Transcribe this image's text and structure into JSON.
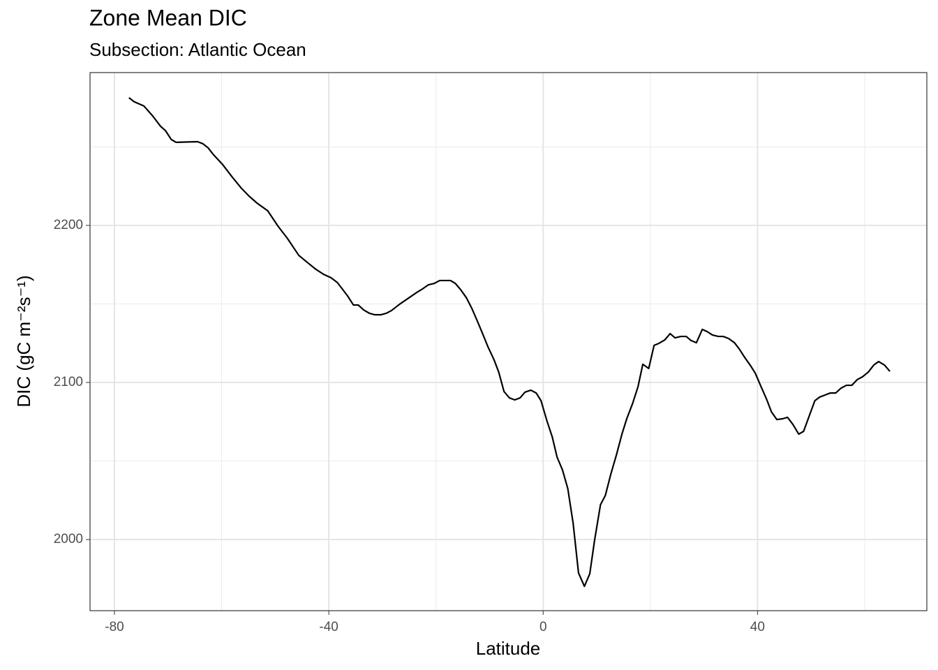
{
  "chart_data": {
    "type": "line",
    "title": "Zone Mean DIC",
    "subtitle": "Subsection: Atlantic Ocean",
    "x_label": "Latitude",
    "y_label": "DIC (gC m⁻²s⁻¹)",
    "xlim": [
      -84.56,
      71.6
    ],
    "ylim": [
      1954.7,
      2297.3
    ],
    "xticks": [
      -80,
      -40,
      0,
      40
    ],
    "yticks": [
      2000,
      2100,
      2200
    ],
    "minor_xticks": [
      -60,
      -20,
      20,
      60
    ],
    "minor_yticks": [
      2050,
      2150,
      2250
    ],
    "grid": true,
    "series": [
      {
        "color": "#000000",
        "x": [
          -77.3,
          -76.3,
          -74.5,
          -72.9,
          -71.4,
          -70.5,
          -69.4,
          -68.5,
          -64.5,
          -63.5,
          -62.5,
          -61.5,
          -59.9,
          -58.1,
          -56.4,
          -54.9,
          -53.4,
          -51.4,
          -49.5,
          -47.7,
          -45.6,
          -44,
          -42.4,
          -41,
          -39.6,
          -38.4,
          -37.5,
          -36.5,
          -35.4,
          -34.5,
          -33.5,
          -32.4,
          -31.4,
          -30.3,
          -29.3,
          -28.3,
          -26.8,
          -25.3,
          -23.6,
          -22.5,
          -21.4,
          -20.3,
          -19.3,
          -17.3,
          -16.4,
          -15.4,
          -14.3,
          -13.3,
          -12.4,
          -11.3,
          -10.3,
          -9.2,
          -8.3,
          -7.3,
          -6.3,
          -5.3,
          -4.3,
          -3.4,
          -2.3,
          -1.3,
          -0.4,
          0.7,
          1.7,
          2.6,
          3.6,
          4.6,
          5.6,
          6.6,
          7.7,
          8.7,
          9.6,
          10.7,
          11.6,
          12.6,
          13.7,
          14.7,
          15.6,
          16.7,
          17.7,
          18.6,
          19.7,
          20.7,
          21.6,
          22.7,
          23.7,
          24.6,
          25.7,
          26.7,
          27.6,
          28.6,
          29.7,
          30.6,
          31.6,
          32.7,
          33.6,
          34.6,
          35.7,
          36.6,
          37.6,
          38.7,
          39.6,
          40.6,
          41.7,
          42.6,
          43.6,
          44.7,
          45.6,
          46.6,
          47.7,
          48.6,
          49.6,
          50.7,
          51.6,
          52.6,
          53.6,
          54.6,
          55.6,
          56.6,
          57.6,
          58.6,
          59.6,
          60.7,
          61.7,
          62.6,
          63.7,
          64.7
        ],
        "values": [
          2281.3,
          2278.7,
          2276,
          2269.8,
          2263.1,
          2260.4,
          2254.7,
          2252.9,
          2253.3,
          2252,
          2249.3,
          2244.9,
          2239.1,
          2231.1,
          2224,
          2218.7,
          2214.2,
          2209.3,
          2199.6,
          2191.6,
          2180.9,
          2176.4,
          2172,
          2168.9,
          2166.7,
          2163.6,
          2159.6,
          2155.1,
          2149.3,
          2149.3,
          2146.2,
          2144,
          2143.1,
          2143.1,
          2144,
          2145.8,
          2149.8,
          2153.3,
          2157.3,
          2159.6,
          2162.2,
          2163.1,
          2164.9,
          2164.9,
          2163.1,
          2159.1,
          2153.8,
          2147.1,
          2140,
          2131.1,
          2122.7,
          2114.7,
          2106.7,
          2094.2,
          2090.2,
          2088.9,
          2090.2,
          2093.8,
          2095.1,
          2093.3,
          2088.4,
          2075.6,
          2065.3,
          2052.4,
          2044.4,
          2032.4,
          2010.2,
          1978.7,
          1970.2,
          1978.2,
          1999.6,
          2022.2,
          2028,
          2041.3,
          2054.2,
          2067.1,
          2076.9,
          2086.7,
          2097.3,
          2111.6,
          2108.9,
          2123.6,
          2124.9,
          2127.1,
          2131.1,
          2128.4,
          2129.3,
          2129.3,
          2126.7,
          2125.3,
          2133.8,
          2132.4,
          2130.2,
          2129.3,
          2129.3,
          2128,
          2125.3,
          2121.3,
          2116,
          2110.7,
          2105.8,
          2097.8,
          2089.3,
          2081.3,
          2076.4,
          2076.9,
          2077.8,
          2073.3,
          2067.1,
          2068.9,
          2078.2,
          2088.4,
          2090.7,
          2092,
          2093.3,
          2093.3,
          2096.4,
          2098.2,
          2098.2,
          2101.8,
          2103.6,
          2106.7,
          2111.1,
          2113.3,
          2111.1,
          2107.1
        ]
      }
    ]
  }
}
